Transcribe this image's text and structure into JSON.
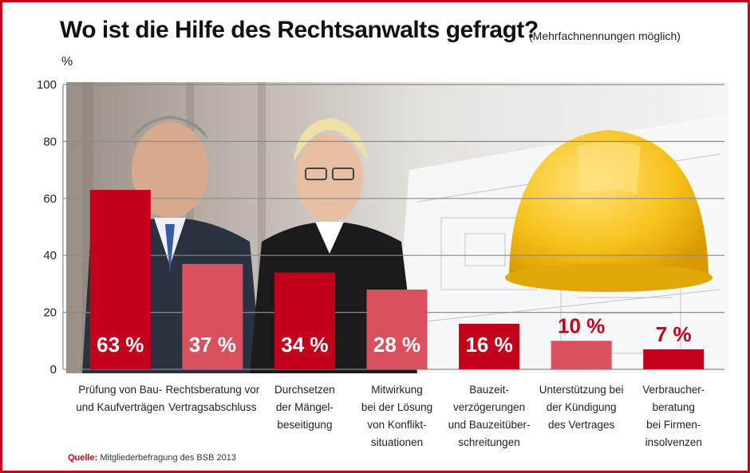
{
  "header": {
    "title": "Wo ist die Hilfe des Rechtsanwalts gefragt?",
    "subtitle": "(Mehrfachnennungen möglich)",
    "unit": "%"
  },
  "source": {
    "label": "Quelle:",
    "text": "Mitgliederbefragung des BSB 2013"
  },
  "colors": {
    "dark_red": "#c3001c",
    "light_red": "#d9505e",
    "frame": "#c8001e",
    "label_white": "#ffffff",
    "label_red": "#c3001c"
  },
  "chart_data": {
    "type": "bar",
    "title": "Wo ist die Hilfe des Rechtsanwalts gefragt?",
    "ylabel": "%",
    "ylim": [
      0,
      100
    ],
    "yticks": [
      "0",
      "20",
      "40",
      "60",
      "80",
      "100"
    ],
    "grid": true,
    "categories": [
      [
        "Prüfung von Bau-",
        "und Kaufverträgen"
      ],
      [
        "Rechtsberatung vor",
        "Vertragsabschluss"
      ],
      [
        "Durchsetzen",
        "der Mängel-",
        "beseitigung"
      ],
      [
        "Mitwirkung",
        "bei der Lösung",
        "von Konflikt-",
        "situationen"
      ],
      [
        "Bauzeit-",
        "verzögerungen",
        "und Bauzeitüber-",
        "schreitungen"
      ],
      [
        "Unterstützung bei",
        "der Kündigung",
        "des Vertrages"
      ],
      [
        "Verbraucher-",
        "beratung",
        "bei Firmen-",
        "insolvenzen"
      ]
    ],
    "values": [
      63,
      37,
      34,
      28,
      16,
      10,
      7
    ],
    "labels": [
      "63 %",
      "37 %",
      "34 %",
      "28 %",
      "16 %",
      "10 %",
      "7 %"
    ]
  }
}
